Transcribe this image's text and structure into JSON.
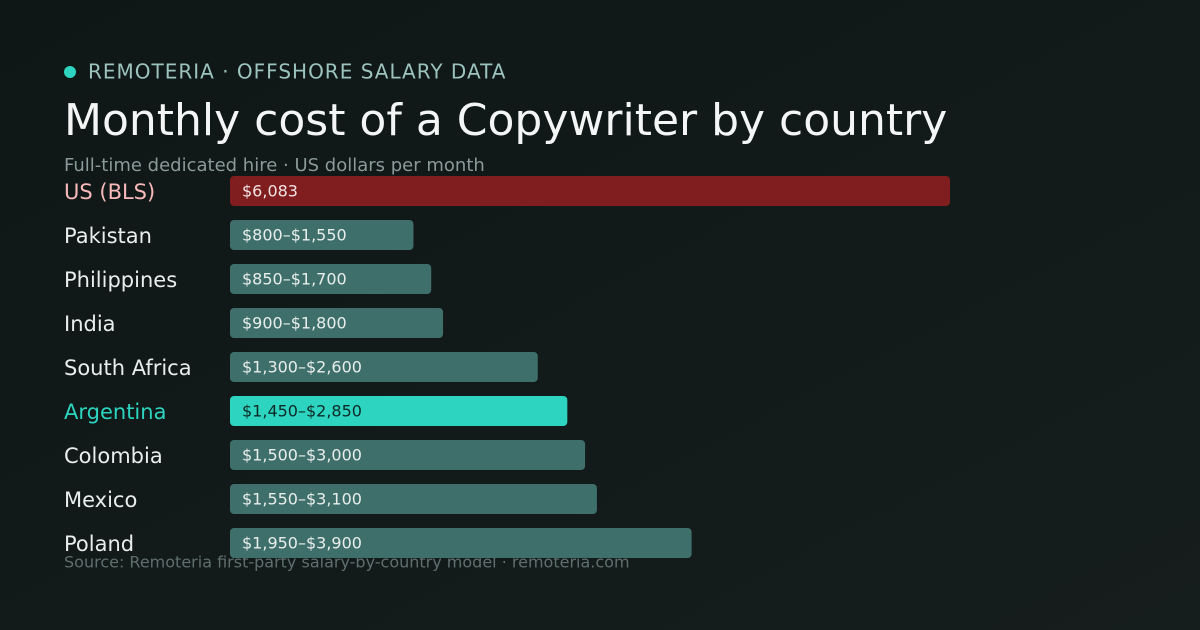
{
  "eyebrow": "REMOTERIA · OFFSHORE SALARY DATA",
  "chart_data": {
    "type": "bar",
    "orientation": "horizontal",
    "title": "Monthly cost of a Copywriter by country",
    "subtitle": "Full-time dedicated hire · US dollars per month",
    "source": "Source: Remoteria first-party salary-by-country model · remoteria.com",
    "categories": [
      "US (BLS)",
      "Pakistan",
      "Philippines",
      "India",
      "South Africa",
      "Argentina",
      "Colombia",
      "Mexico",
      "Poland"
    ],
    "lows": [
      null,
      800,
      850,
      900,
      1300,
      1450,
      1500,
      1550,
      1950
    ],
    "values": [
      6083,
      1550,
      1700,
      1800,
      2600,
      2850,
      3000,
      3100,
      3900
    ],
    "value_labels": [
      "$6,083",
      "$800–$1,550",
      "$850–$1,700",
      "$900–$1,800",
      "$1,300–$2,600",
      "$1,450–$2,850",
      "$1,500–$3,000",
      "$1,550–$3,100",
      "$1,950–$3,900"
    ],
    "colors": [
      "#7f1d1f",
      "#3f6f6a",
      "#3f6f6a",
      "#3f6f6a",
      "#3f6f6a",
      "#2dd4bf",
      "#3f6f6a",
      "#3f6f6a",
      "#3f6f6a"
    ],
    "category_label_colors": [
      "#f7b9b9",
      "#e8eeec",
      "#e8eeec",
      "#e8eeec",
      "#e8eeec",
      "#2dd4bf",
      "#e8eeec",
      "#e8eeec",
      "#e8eeec"
    ],
    "value_label_colors": [
      "#f3e4e4",
      "#e8eeec",
      "#e8eeec",
      "#e8eeec",
      "#e8eeec",
      "#0d2a27",
      "#e8eeec",
      "#e8eeec",
      "#e8eeec"
    ],
    "xlim": [
      0,
      6083
    ]
  }
}
